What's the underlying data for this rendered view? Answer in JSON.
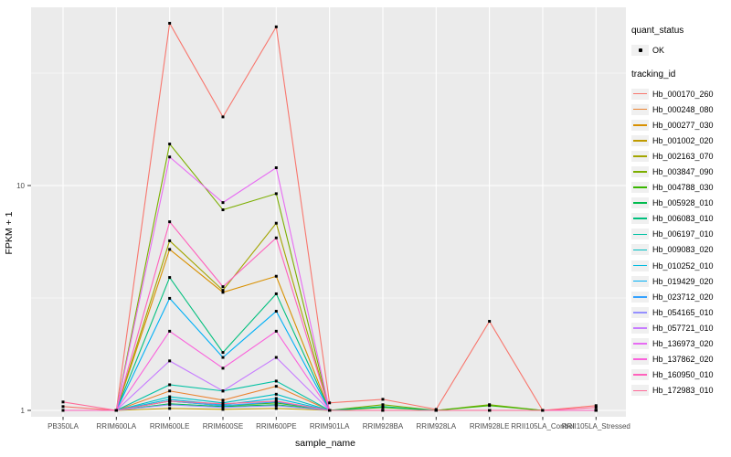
{
  "figure": {
    "background": "#FFFFFF",
    "panel_background": "#EBEBEB",
    "grid_color": "#FFFFFF",
    "tick_color": "#333333",
    "tick_label_color": "#4D4D4D",
    "point_color": "#000000"
  },
  "legend": {
    "quant_status_title": "quant_status",
    "quant_status_value": "OK",
    "tracking_id_title": "tracking_id"
  },
  "chart_data": {
    "type": "line",
    "title": "",
    "xlabel": "sample_name",
    "ylabel": "FPKM + 1",
    "y_scale": "log10",
    "y_ticks": [
      1,
      10
    ],
    "ylim": [
      0.94,
      62
    ],
    "grid": true,
    "legend_position": "right",
    "point_shape": "filled-square",
    "categories": [
      "PB350LA",
      "RRIM600LA",
      "RRIM600LE",
      "RRIM600SE",
      "RRIM600PE",
      "RRIM901LA",
      "RRIM928BA",
      "RRIM928LA",
      "RRIM928LE",
      "RRII105LA_Control",
      "RRII105LA_Stressed"
    ],
    "series": [
      {
        "name": "Hb_000170_260",
        "color": "#F8766D",
        "values": [
          1.04,
          1.0,
          52.7,
          20.2,
          50.8,
          1.08,
          1.12,
          1.01,
          2.49,
          1.0,
          1.05
        ]
      },
      {
        "name": "Hb_000248_080",
        "color": "#EA8331",
        "values": [
          1.0,
          1.0,
          1.22,
          1.11,
          1.28,
          1.0,
          1.0,
          1.0,
          1.0,
          1.0,
          1.0
        ]
      },
      {
        "name": "Hb_000277_030",
        "color": "#D89000",
        "values": [
          1.0,
          1.0,
          5.2,
          3.35,
          3.95,
          1.0,
          1.0,
          1.0,
          1.0,
          1.0,
          1.0
        ]
      },
      {
        "name": "Hb_001002_020",
        "color": "#C09B00",
        "values": [
          1.0,
          1.0,
          1.02,
          1.01,
          1.02,
          1.0,
          1.0,
          1.0,
          1.0,
          1.0,
          1.0
        ]
      },
      {
        "name": "Hb_002163_070",
        "color": "#A3A500",
        "values": [
          1.0,
          1.0,
          5.68,
          3.42,
          6.8,
          1.0,
          1.0,
          1.0,
          1.0,
          1.0,
          1.0
        ]
      },
      {
        "name": "Hb_003847_090",
        "color": "#7CAE00",
        "values": [
          1.0,
          1.0,
          15.3,
          7.8,
          9.2,
          1.0,
          1.06,
          1.0,
          1.06,
          1.0,
          1.0
        ]
      },
      {
        "name": "Hb_004788_030",
        "color": "#39B600",
        "values": [
          1.0,
          1.0,
          1.1,
          1.05,
          1.08,
          1.0,
          1.03,
          1.0,
          1.05,
          1.0,
          1.0
        ]
      },
      {
        "name": "Hb_005928_010",
        "color": "#00BB4E",
        "values": [
          1.0,
          1.0,
          1.07,
          1.04,
          1.06,
          1.0,
          1.0,
          1.0,
          1.0,
          1.0,
          1.0
        ]
      },
      {
        "name": "Hb_006083_010",
        "color": "#00BF7D",
        "values": [
          1.0,
          1.0,
          3.9,
          1.81,
          3.3,
          1.0,
          1.04,
          1.0,
          1.0,
          1.0,
          1.0
        ]
      },
      {
        "name": "Hb_006197_010",
        "color": "#00C1A3",
        "values": [
          1.0,
          1.0,
          1.3,
          1.22,
          1.35,
          1.0,
          1.0,
          1.0,
          1.0,
          1.0,
          1.0
        ]
      },
      {
        "name": "Hb_009083_020",
        "color": "#00BFC4",
        "values": [
          1.0,
          1.0,
          1.15,
          1.08,
          1.18,
          1.0,
          1.0,
          1.0,
          1.0,
          1.0,
          1.0
        ]
      },
      {
        "name": "Hb_010252_010",
        "color": "#00BAE0",
        "values": [
          1.0,
          1.0,
          1.12,
          1.06,
          1.13,
          1.0,
          1.0,
          1.0,
          1.0,
          1.0,
          1.0
        ]
      },
      {
        "name": "Hb_019429_020",
        "color": "#00B0F6",
        "values": [
          1.0,
          1.0,
          3.15,
          1.72,
          2.76,
          1.0,
          1.0,
          1.0,
          1.0,
          1.0,
          1.0
        ]
      },
      {
        "name": "Hb_023712_020",
        "color": "#35A2FF",
        "values": [
          1.0,
          1.0,
          1.1,
          1.05,
          1.09,
          1.0,
          1.0,
          1.0,
          1.0,
          1.0,
          1.0
        ]
      },
      {
        "name": "Hb_054165_010",
        "color": "#9590FF",
        "values": [
          1.0,
          1.0,
          1.06,
          1.03,
          1.05,
          1.0,
          1.0,
          1.0,
          1.0,
          1.0,
          1.0
        ]
      },
      {
        "name": "Hb_057721_010",
        "color": "#C77CFF",
        "values": [
          1.0,
          1.0,
          1.66,
          1.22,
          1.72,
          1.0,
          1.0,
          1.0,
          1.0,
          1.0,
          1.0
        ]
      },
      {
        "name": "Hb_136973_020",
        "color": "#E76BF3",
        "values": [
          1.0,
          1.0,
          13.4,
          8.4,
          12.0,
          1.0,
          1.0,
          1.0,
          1.0,
          1.0,
          1.0
        ]
      },
      {
        "name": "Hb_137862_020",
        "color": "#FA62DB",
        "values": [
          1.0,
          1.0,
          2.25,
          1.54,
          2.25,
          1.0,
          1.0,
          1.0,
          1.0,
          1.0,
          1.0
        ]
      },
      {
        "name": "Hb_160950_010",
        "color": "#FF62BC",
        "values": [
          1.0,
          1.0,
          6.9,
          3.55,
          5.85,
          1.0,
          1.0,
          1.0,
          1.0,
          1.0,
          1.0
        ]
      },
      {
        "name": "Hb_172983_010",
        "color": "#FF6A98",
        "values": [
          1.09,
          1.0,
          1.1,
          1.07,
          1.1,
          1.0,
          1.0,
          1.0,
          1.0,
          1.0,
          1.03
        ]
      }
    ]
  }
}
